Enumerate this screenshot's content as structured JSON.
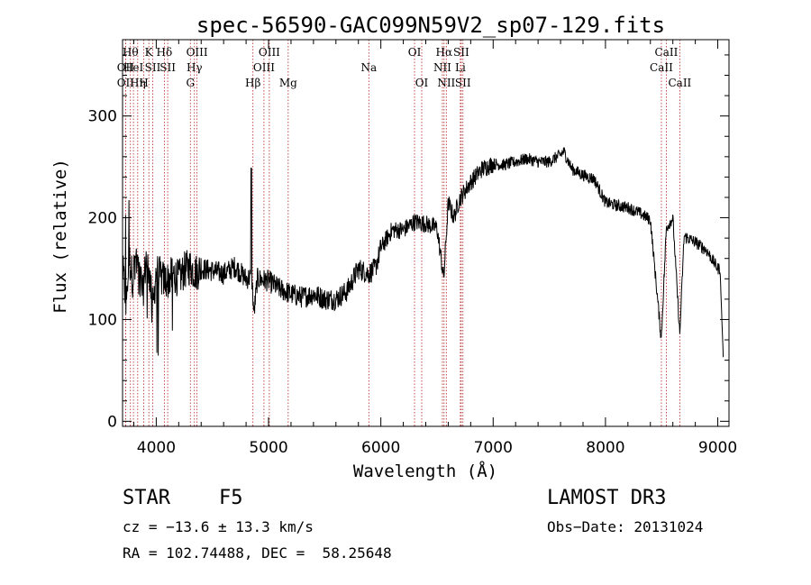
{
  "chart_data": {
    "type": "line",
    "title": "spec-56590-GAC099N59V2_sp07-129.fits",
    "xlabel": "Wavelength (Å)",
    "ylabel": "Flux (relative)",
    "xlim": [
      3700,
      9100
    ],
    "ylim": [
      -5,
      375
    ],
    "x_ticks": [
      4000,
      5000,
      6000,
      7000,
      8000,
      9000
    ],
    "x_tick_labels": [
      "4000",
      "5000",
      "6000",
      "7000",
      "8000",
      "9000"
    ],
    "y_ticks": [
      0,
      100,
      200,
      300
    ],
    "y_tick_labels": [
      "0",
      "100",
      "200",
      "300"
    ],
    "grid": false,
    "series": [
      {
        "name": "flux",
        "x": [
          3700,
          3730,
          3760,
          3790,
          3820,
          3850,
          3880,
          3910,
          3940,
          3970,
          4000,
          4050,
          4100,
          4150,
          4200,
          4250,
          4300,
          4350,
          4400,
          4500,
          4600,
          4700,
          4800,
          4850,
          4870,
          4900,
          5000,
          5100,
          5200,
          5300,
          5400,
          5500,
          5600,
          5700,
          5800,
          5890,
          5950,
          6000,
          6100,
          6200,
          6300,
          6400,
          6500,
          6560,
          6600,
          6650,
          6700,
          6800,
          6900,
          7000,
          7100,
          7200,
          7300,
          7400,
          7500,
          7600,
          7630,
          7700,
          7800,
          7900,
          8000,
          8100,
          8200,
          8300,
          8400,
          8497,
          8542,
          8600,
          8662,
          8700,
          8800,
          8900,
          9000
        ],
        "y": [
          150,
          120,
          160,
          140,
          165,
          150,
          125,
          160,
          145,
          110,
          150,
          140,
          138,
          145,
          140,
          148,
          152,
          146,
          150,
          148,
          145,
          152,
          140,
          142,
          105,
          140,
          138,
          130,
          125,
          122,
          125,
          120,
          120,
          128,
          150,
          145,
          150,
          170,
          188,
          188,
          196,
          194,
          190,
          140,
          215,
          200,
          218,
          235,
          248,
          253,
          252,
          255,
          258,
          255,
          255,
          262,
          265,
          248,
          242,
          238,
          215,
          212,
          210,
          205,
          198,
          80,
          190,
          200,
          85,
          182,
          176,
          168,
          150
        ]
      }
    ],
    "line_markers": [
      {
        "wl": 3727,
        "label": "OII",
        "row": 2
      },
      {
        "wl": 3727,
        "label": "OII",
        "row": 3
      },
      {
        "wl": 3770,
        "label": "Hθ",
        "row": 1
      },
      {
        "wl": 3797,
        "label": "HeI",
        "row": 2
      },
      {
        "wl": 3835,
        "label": "Hη",
        "row": 3
      },
      {
        "wl": 3889,
        "label": "H",
        "row": 3
      },
      {
        "wl": 3934,
        "label": "K",
        "row": 1
      },
      {
        "wl": 3969,
        "label": "SII",
        "row": 2
      },
      {
        "wl": 4072,
        "label": "Hδ",
        "row": 1
      },
      {
        "wl": 4102,
        "label": "SII",
        "row": 2
      },
      {
        "wl": 4304,
        "label": "G",
        "row": 3
      },
      {
        "wl": 4340,
        "label": "Hγ",
        "row": 2
      },
      {
        "wl": 4363,
        "label": "OIII",
        "row": 1
      },
      {
        "wl": 4861,
        "label": "Hβ",
        "row": 3
      },
      {
        "wl": 4959,
        "label": "OIII",
        "row": 2
      },
      {
        "wl": 5007,
        "label": "OIII",
        "row": 1
      },
      {
        "wl": 5175,
        "label": "Mg",
        "row": 3
      },
      {
        "wl": 5893,
        "label": "Na",
        "row": 2
      },
      {
        "wl": 6300,
        "label": "OI",
        "row": 1
      },
      {
        "wl": 6364,
        "label": "OI",
        "row": 3
      },
      {
        "wl": 6548,
        "label": "NII",
        "row": 2
      },
      {
        "wl": 6563,
        "label": "Hα",
        "row": 1
      },
      {
        "wl": 6583,
        "label": "NII",
        "row": 3
      },
      {
        "wl": 6708,
        "label": "Li",
        "row": 2
      },
      {
        "wl": 6716,
        "label": "SII",
        "row": 1
      },
      {
        "wl": 6731,
        "label": "SII",
        "row": 3
      },
      {
        "wl": 8498,
        "label": "CaII",
        "row": 2
      },
      {
        "wl": 8542,
        "label": "CaII",
        "row": 1
      },
      {
        "wl": 8662,
        "label": "CaII",
        "row": 3
      }
    ]
  },
  "info": {
    "object_class": "STAR",
    "subclass": "F5",
    "survey": "LAMOST DR3",
    "cz": "cz = −13.6 ± 13.3 km/s",
    "obs_date": "Obs−Date: 20131024",
    "coords": "RA = 102.74488, DEC =  58.25648"
  },
  "colors": {
    "line": "#000000",
    "marker": "#b22222",
    "axis": "#000000"
  }
}
